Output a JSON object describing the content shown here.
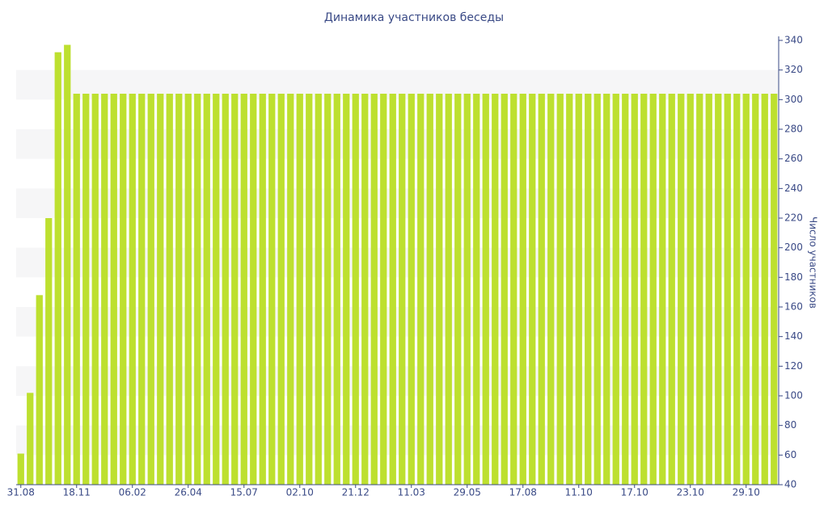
{
  "chart_data": {
    "type": "bar",
    "title": "Динамика участников беседы",
    "y_axis_label": "Число участников",
    "color": "#bde02f",
    "categories": [
      "31.08",
      null,
      null,
      null,
      null,
      null,
      "18.11",
      null,
      null,
      null,
      null,
      null,
      "06.02",
      null,
      null,
      null,
      null,
      null,
      "26.04",
      null,
      null,
      null,
      null,
      null,
      "15.07",
      null,
      null,
      null,
      null,
      null,
      "02.10",
      null,
      null,
      null,
      null,
      null,
      "21.12",
      null,
      null,
      null,
      null,
      null,
      "11.03",
      null,
      null,
      null,
      null,
      null,
      "29.05",
      null,
      null,
      null,
      null,
      null,
      "17.08",
      null,
      null,
      null,
      null,
      null,
      "11.10",
      null,
      null,
      null,
      null,
      null,
      "17.10",
      null,
      null,
      null,
      null,
      null,
      "23.10",
      null,
      null,
      null,
      null,
      null,
      "29.10",
      null,
      null,
      null
    ],
    "values": [
      61,
      102,
      168,
      220,
      332,
      337,
      304,
      304,
      304,
      304,
      304,
      304,
      304,
      304,
      304,
      304,
      304,
      304,
      304,
      304,
      304,
      304,
      304,
      304,
      304,
      304,
      304,
      304,
      304,
      304,
      304,
      304,
      304,
      304,
      304,
      304,
      304,
      304,
      304,
      304,
      304,
      304,
      304,
      304,
      304,
      304,
      304,
      304,
      304,
      304,
      304,
      304,
      304,
      304,
      304,
      304,
      304,
      304,
      304,
      304,
      304,
      304,
      304,
      304,
      304,
      304,
      304,
      304,
      304,
      304,
      304,
      304,
      304,
      304,
      304,
      304,
      304,
      304,
      304,
      304,
      304,
      304
    ],
    "ylim": [
      40,
      340
    ],
    "yticks": [
      40,
      60,
      80,
      100,
      120,
      140,
      160,
      180,
      200,
      220,
      240,
      260,
      280,
      300,
      320,
      340
    ],
    "y_axis_side": "right"
  }
}
